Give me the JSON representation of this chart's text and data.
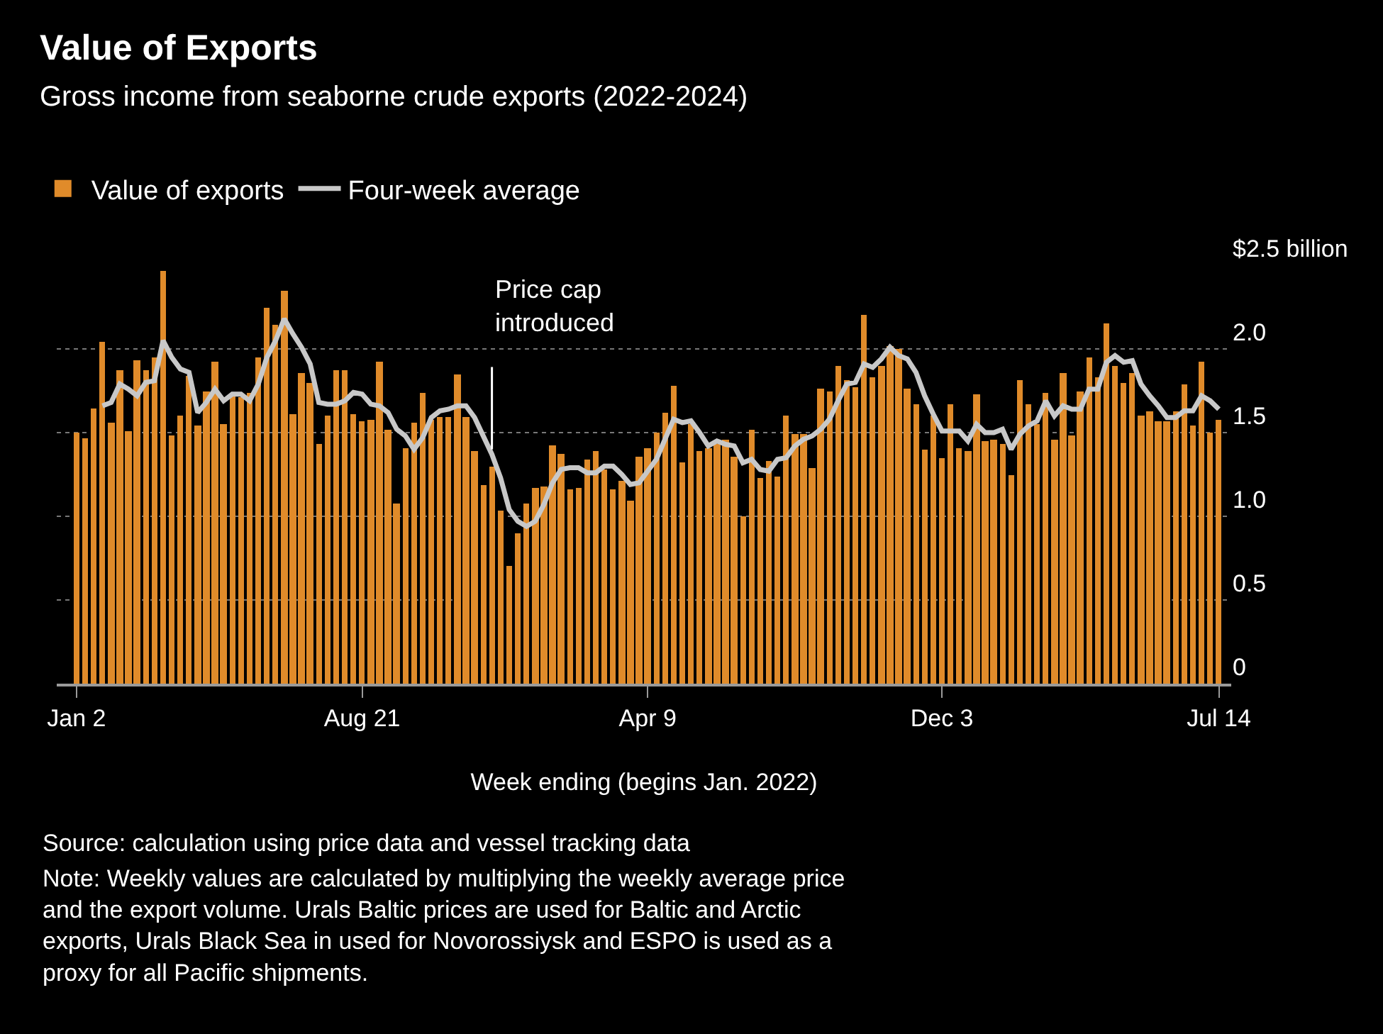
{
  "chart_data": {
    "type": "bar",
    "title": "Value of Exports",
    "subtitle": "Gross income from seaborne crude exports (2022-2024)",
    "xlabel": "Week ending (begins Jan. 2022)",
    "x": [
      "2022-01-02",
      "2022-01-09",
      "2022-01-16",
      "2022-01-23",
      "2022-01-30",
      "2022-02-06",
      "2022-02-13",
      "2022-02-20",
      "2022-02-27",
      "2022-03-06",
      "2022-03-13",
      "2022-03-20",
      "2022-03-27",
      "2022-04-03",
      "2022-04-10",
      "2022-04-17",
      "2022-04-24",
      "2022-05-01",
      "2022-05-08",
      "2022-05-15",
      "2022-05-22",
      "2022-05-29",
      "2022-06-05",
      "2022-06-12",
      "2022-06-19",
      "2022-06-26",
      "2022-07-03",
      "2022-07-10",
      "2022-07-17",
      "2022-07-24",
      "2022-07-31",
      "2022-08-07",
      "2022-08-14",
      "2022-08-21",
      "2022-08-28",
      "2022-09-04",
      "2022-09-11",
      "2022-09-18",
      "2022-09-25",
      "2022-10-02",
      "2022-10-09",
      "2022-10-16",
      "2022-10-23",
      "2022-10-30",
      "2022-11-06",
      "2022-11-13",
      "2022-11-20",
      "2022-11-27",
      "2022-12-04",
      "2022-12-11",
      "2022-12-18",
      "2022-12-25",
      "2023-01-01",
      "2023-01-08",
      "2023-01-15",
      "2023-01-22",
      "2023-01-29",
      "2023-02-05",
      "2023-02-12",
      "2023-02-19",
      "2023-02-26",
      "2023-03-05",
      "2023-03-12",
      "2023-03-19",
      "2023-03-26",
      "2023-04-02",
      "2023-04-09",
      "2023-04-16",
      "2023-04-23",
      "2023-04-30",
      "2023-05-07",
      "2023-05-14",
      "2023-05-21",
      "2023-05-28",
      "2023-06-04",
      "2023-06-11",
      "2023-06-18",
      "2023-06-25",
      "2023-07-02",
      "2023-07-09",
      "2023-07-16",
      "2023-07-23",
      "2023-07-30",
      "2023-08-06",
      "2023-08-13",
      "2023-08-20",
      "2023-08-27",
      "2023-09-03",
      "2023-09-10",
      "2023-09-17",
      "2023-09-24",
      "2023-10-01",
      "2023-10-08",
      "2023-10-15",
      "2023-10-22",
      "2023-10-29",
      "2023-11-05",
      "2023-11-12",
      "2023-11-19",
      "2023-11-26",
      "2023-12-03",
      "2023-12-10",
      "2023-12-17",
      "2023-12-24",
      "2023-12-31",
      "2024-01-07",
      "2024-01-14",
      "2024-01-21",
      "2024-01-28",
      "2024-02-04",
      "2024-02-11",
      "2024-02-18",
      "2024-02-25",
      "2024-03-03",
      "2024-03-10",
      "2024-03-17",
      "2024-03-24",
      "2024-03-31",
      "2024-04-07",
      "2024-04-14",
      "2024-04-21",
      "2024-04-28",
      "2024-05-05",
      "2024-05-12",
      "2024-05-19",
      "2024-05-26",
      "2024-06-02",
      "2024-06-09",
      "2024-06-16",
      "2024-06-23",
      "2024-06-30",
      "2024-07-07",
      "2024-07-14"
    ],
    "series": [
      {
        "name": "Value of exports",
        "color": "#e08b2a",
        "values": [
          1.5,
          1.47,
          1.64,
          2.04,
          1.56,
          1.87,
          1.51,
          1.93,
          1.87,
          1.95,
          2.47,
          1.48,
          1.6,
          1.84,
          1.54,
          1.75,
          1.92,
          1.55,
          1.73,
          1.71,
          1.74,
          1.95,
          2.25,
          2.14,
          2.35,
          1.61,
          1.86,
          1.8,
          1.43,
          1.6,
          1.87,
          1.87,
          1.61,
          1.57,
          1.58,
          1.92,
          1.52,
          1.08,
          1.41,
          1.56,
          1.74,
          1.58,
          1.59,
          1.59,
          1.85,
          1.59,
          1.39,
          1.19,
          1.3,
          1.03,
          0.7,
          0.9,
          1.08,
          1.17,
          1.18,
          1.42,
          1.37,
          1.16,
          1.17,
          1.34,
          1.39,
          1.28,
          1.16,
          1.21,
          1.09,
          1.36,
          1.41,
          1.5,
          1.62,
          1.78,
          1.32,
          1.55,
          1.39,
          1.41,
          1.43,
          1.46,
          1.36,
          1.0,
          1.52,
          1.23,
          1.33,
          1.24,
          1.6,
          1.49,
          1.49,
          1.29,
          1.76,
          1.75,
          1.9,
          1.81,
          1.77,
          2.2,
          1.83,
          1.9,
          2.02,
          2.0,
          1.76,
          1.67,
          1.4,
          1.6,
          1.35,
          1.67,
          1.41,
          1.39,
          1.73,
          1.45,
          1.46,
          1.43,
          1.25,
          1.81,
          1.67,
          1.55,
          1.74,
          1.46,
          1.86,
          1.48,
          1.75,
          1.95,
          1.83,
          2.15,
          1.9,
          1.8,
          1.86,
          1.6,
          1.63,
          1.57,
          1.57,
          1.63,
          1.79,
          1.54,
          1.92,
          1.5,
          1.58
        ]
      },
      {
        "name": "Four-week average",
        "type": "line",
        "color": "#c8c8c8",
        "values": [
          null,
          null,
          null,
          1.66,
          1.68,
          1.79,
          1.76,
          1.72,
          1.8,
          1.81,
          2.05,
          1.95,
          1.88,
          1.86,
          1.62,
          1.68,
          1.76,
          1.69,
          1.73,
          1.73,
          1.69,
          1.79,
          1.95,
          2.05,
          2.18,
          2.09,
          2.01,
          1.91,
          1.68,
          1.67,
          1.67,
          1.69,
          1.74,
          1.73,
          1.67,
          1.66,
          1.62,
          1.52,
          1.48,
          1.4,
          1.47,
          1.59,
          1.63,
          1.64,
          1.66,
          1.66,
          1.59,
          1.48,
          1.37,
          1.23,
          1.04,
          0.97,
          0.94,
          0.97,
          1.07,
          1.2,
          1.28,
          1.29,
          1.29,
          1.26,
          1.26,
          1.3,
          1.3,
          1.25,
          1.19,
          1.2,
          1.27,
          1.34,
          1.46,
          1.58,
          1.56,
          1.57,
          1.5,
          1.42,
          1.45,
          1.43,
          1.42,
          1.32,
          1.34,
          1.28,
          1.27,
          1.34,
          1.35,
          1.42,
          1.46,
          1.48,
          1.52,
          1.58,
          1.69,
          1.79,
          1.8,
          1.91,
          1.89,
          1.94,
          2.01,
          1.96,
          1.94,
          1.86,
          1.72,
          1.61,
          1.51,
          1.51,
          1.51,
          1.45,
          1.55,
          1.5,
          1.5,
          1.52,
          1.4,
          1.49,
          1.54,
          1.57,
          1.69,
          1.6,
          1.66,
          1.64,
          1.64,
          1.76,
          1.76,
          1.92,
          1.96,
          1.92,
          1.93,
          1.79,
          1.72,
          1.66,
          1.59,
          1.59,
          1.63,
          1.63,
          1.72,
          1.69,
          1.64
        ]
      }
    ],
    "xlim": [
      "2021-12-17",
      "2024-07-24"
    ],
    "xticks": [
      {
        "value": "2022-01-02",
        "label": "Jan 2"
      },
      {
        "value": "2022-08-21",
        "label": "Aug 21"
      },
      {
        "value": "2023-04-09",
        "label": "Apr 9"
      },
      {
        "value": "2023-12-03",
        "label": "Dec 3"
      },
      {
        "value": "2024-07-14",
        "label": "Jul 14"
      }
    ],
    "ylim": [
      0,
      2.5
    ],
    "yticks": [
      0,
      0.5,
      {
        "value": 1,
        "label": "1.0"
      },
      1.5,
      {
        "value": 2,
        "label": "2.0"
      },
      {
        "value": 2.5,
        "label": "$2.5 billion"
      }
    ],
    "grid": "y",
    "legend": "top left",
    "annotations": [
      {
        "text": "Price cap\nintroduced",
        "x": "2022-12-04",
        "y": 1.4
      },
      "Source: calculation using price data and vessel tracking data",
      "Note: Weekly values are calculated by multiplying the weekly average price and the export volume. Urals Baltic prices are used for Baltic and Arctic exports, Urals Black Sea in used for Novorossiysk and ESPO is used as a proxy for all Pacific shipments."
    ]
  }
}
